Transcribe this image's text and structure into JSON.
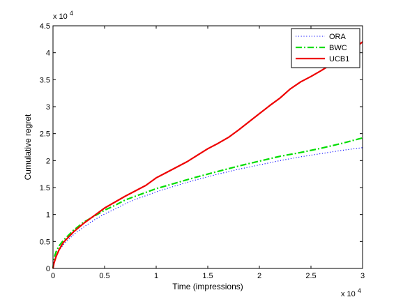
{
  "chart_data": {
    "type": "line",
    "xlabel": "Time (impressions)",
    "ylabel": "Cumulative regret",
    "x_multiplier_label": "x 10",
    "x_multiplier_exp": "4",
    "y_multiplier_label": "x 10",
    "y_multiplier_exp": "4",
    "xlim": [
      0,
      30000
    ],
    "ylim": [
      0,
      45000
    ],
    "x_ticks": [
      0,
      5000,
      10000,
      15000,
      20000,
      25000,
      30000
    ],
    "x_tick_labels": [
      "0",
      "0.5",
      "1",
      "1.5",
      "2",
      "2.5",
      "3"
    ],
    "y_ticks": [
      0,
      5000,
      10000,
      15000,
      20000,
      25000,
      30000,
      35000,
      40000,
      45000
    ],
    "y_tick_labels": [
      "0",
      "0.5",
      "1",
      "1.5",
      "2",
      "2.5",
      "3",
      "3.5",
      "4",
      "4.5"
    ],
    "grid": false,
    "legend_position": "top-right",
    "series": [
      {
        "name": "ORA",
        "color": "#0000ff",
        "style": "dotted",
        "x": [
          0,
          100,
          300,
          600,
          1000,
          2000,
          3000,
          4000,
          5000,
          6000,
          7000,
          8000,
          9000,
          10000,
          12000,
          14000,
          16000,
          18000,
          20000,
          22000,
          24000,
          26000,
          28000,
          30000
        ],
        "y": [
          0,
          1300,
          2400,
          3400,
          4400,
          6300,
          7700,
          9000,
          10100,
          11000,
          12000,
          12800,
          13500,
          14200,
          15400,
          16500,
          17500,
          18400,
          19200,
          20000,
          20700,
          21300,
          21900,
          22400
        ]
      },
      {
        "name": "BWC",
        "color": "#00dd00",
        "style": "dashdot",
        "x": [
          0,
          100,
          300,
          600,
          1000,
          2000,
          3000,
          4000,
          5000,
          6000,
          7000,
          8000,
          9000,
          10000,
          12000,
          14000,
          16000,
          18000,
          20000,
          22000,
          24000,
          26000,
          28000,
          30000
        ],
        "y": [
          0,
          1900,
          3100,
          4200,
          5200,
          7100,
          8600,
          9700,
          10800,
          11700,
          12700,
          13400,
          14100,
          14800,
          15900,
          17000,
          18000,
          19000,
          19900,
          20800,
          21500,
          22300,
          23200,
          24200
        ]
      },
      {
        "name": "UCB1",
        "color": "#ee0000",
        "style": "solid",
        "x": [
          0,
          100,
          300,
          600,
          1000,
          2000,
          3000,
          4000,
          5000,
          6000,
          7000,
          8000,
          9000,
          10000,
          11000,
          12000,
          13000,
          14000,
          15000,
          16000,
          17000,
          18000,
          19000,
          20000,
          21000,
          22000,
          23000,
          24000,
          25000,
          26000,
          27000,
          28000,
          29000,
          30000
        ],
        "y": [
          0,
          1000,
          2200,
          3500,
          4800,
          6800,
          8400,
          9800,
          11200,
          12300,
          13400,
          14400,
          15400,
          16800,
          17800,
          18800,
          19800,
          21000,
          22200,
          23200,
          24300,
          25700,
          27200,
          28700,
          30200,
          31600,
          33300,
          34600,
          35600,
          36700,
          37900,
          39300,
          40600,
          42000
        ]
      }
    ]
  }
}
